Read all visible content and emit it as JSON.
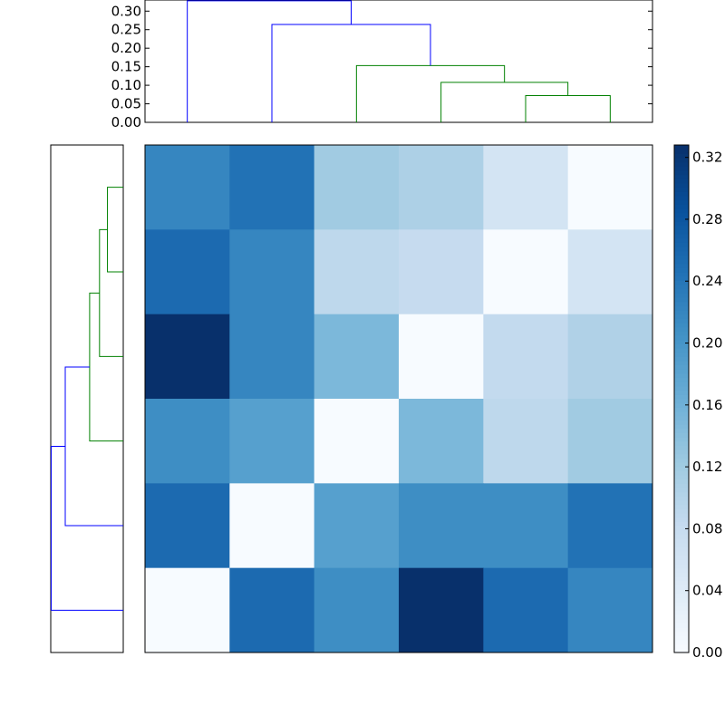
{
  "chart_data": [
    {
      "type": "dendrogram",
      "orientation": "top",
      "ylim": [
        0,
        0.33
      ],
      "yticks": [
        "0.00",
        "0.05",
        "0.10",
        "0.15",
        "0.20",
        "0.25",
        "0.30"
      ],
      "leaves": 6,
      "merges": [
        {
          "left": 4,
          "right": 5,
          "height": 0.072,
          "color": "#008000"
        },
        {
          "left": 3,
          "right": 6,
          "height": 0.108,
          "color": "#008000"
        },
        {
          "left": 2,
          "right": 7,
          "height": 0.153,
          "color": "#008000"
        },
        {
          "left": 1,
          "right": 8,
          "height": 0.264,
          "color": "#0000ff"
        },
        {
          "left": 0,
          "right": 9,
          "height": 0.328,
          "color": "#0000ff"
        }
      ]
    },
    {
      "type": "dendrogram",
      "orientation": "left",
      "xlim": [
        0.33,
        0
      ],
      "leaves": 6,
      "merges": [
        {
          "left": 4,
          "right": 5,
          "height": 0.072,
          "color": "#008000"
        },
        {
          "left": 3,
          "right": 6,
          "height": 0.108,
          "color": "#008000"
        },
        {
          "left": 2,
          "right": 7,
          "height": 0.153,
          "color": "#008000"
        },
        {
          "left": 1,
          "right": 8,
          "height": 0.264,
          "color": "#0000ff"
        },
        {
          "left": 0,
          "right": 9,
          "height": 0.328,
          "color": "#0000ff"
        }
      ]
    },
    {
      "type": "heatmap",
      "colormap": "Blues",
      "vmin": 0,
      "vmax": 0.328,
      "values": [
        [
          0.22,
          0.245,
          0.12,
          0.108,
          0.06,
          0.0
        ],
        [
          0.255,
          0.22,
          0.09,
          0.082,
          0.0,
          0.06
        ],
        [
          0.328,
          0.22,
          0.15,
          0.0,
          0.085,
          0.105
        ],
        [
          0.21,
          0.185,
          0.0,
          0.15,
          0.09,
          0.12
        ],
        [
          0.255,
          0.0,
          0.185,
          0.21,
          0.21,
          0.245
        ],
        [
          0.0,
          0.255,
          0.21,
          0.328,
          0.255,
          0.22
        ]
      ]
    },
    {
      "type": "colorbar",
      "colormap": "Blues",
      "ylim": [
        0,
        0.328
      ],
      "ticks": [
        "0.00",
        "0.04",
        "0.08",
        "0.12",
        "0.16",
        "0.20",
        "0.24",
        "0.28",
        "0.32"
      ]
    }
  ]
}
